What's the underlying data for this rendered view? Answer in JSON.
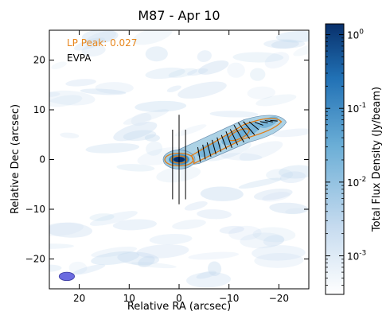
{
  "chart_data": {
    "type": "heatmap",
    "title": "M87 - Apr 10",
    "xlabel": "Relative RA (arcsec)",
    "ylabel": "Relative Dec (arcsec)",
    "xlim": [
      26,
      -26
    ],
    "ylim": [
      -26,
      26
    ],
    "x_ticks": [
      20,
      10,
      0,
      -10,
      -20
    ],
    "y_ticks": [
      20,
      10,
      0,
      -10,
      -20
    ],
    "x_tick_labels": [
      "20",
      "10",
      "0",
      "−10",
      "−20"
    ],
    "y_tick_labels": [
      "20",
      "10",
      "0",
      "−10",
      "−20"
    ],
    "colorbar": {
      "label": "Total Flux Density (Jy/beam)",
      "scale": "log",
      "range": [
        0.0003,
        1.4
      ],
      "colormap_colors": [
        "#ffffff",
        "#c6dbef",
        "#6baed6",
        "#2171b5",
        "#08306b"
      ],
      "ticks": [
        1,
        0.1,
        0.01,
        0.001
      ],
      "tick_bases": [
        "10",
        "10",
        "10",
        "10"
      ],
      "tick_exponents": [
        "0",
        "-1",
        "-2",
        "-3"
      ]
    },
    "annotations": {
      "lp_peak": "LP Peak: 0.027",
      "evpa": "EVPA"
    },
    "colors": {
      "lp_contour": "#e07b14",
      "lp_text": "#e8871e",
      "evpa_vectors": "#000000",
      "beam_fill": "#6b6be0"
    },
    "core": {
      "x": 0,
      "y": 0,
      "peak_jy": 1.0
    },
    "jet_knots": [
      {
        "x": -6,
        "y": 2,
        "flux": 0.05
      },
      {
        "x": -11,
        "y": 4.5,
        "flux": 0.06
      },
      {
        "x": -14,
        "y": 6,
        "flux": 0.05
      },
      {
        "x": -18,
        "y": 7.5,
        "flux": 0.02
      }
    ],
    "beam": {
      "x": 22.5,
      "y": -23.5,
      "major_arcsec": 2.2,
      "minor_arcsec": 1.2,
      "pa_deg": 0
    },
    "evpa_vectors": [
      {
        "x": 0.0,
        "y": 0.0,
        "length": 18.0,
        "angle_deg": 90
      },
      {
        "x": 1.3,
        "y": -1.0,
        "length": 14.0,
        "angle_deg": 90
      },
      {
        "x": -1.3,
        "y": -1.0,
        "length": 14.0,
        "angle_deg": 90
      },
      {
        "x": -4,
        "y": 1.0,
        "length": 3.0,
        "angle_deg": 80
      },
      {
        "x": -5,
        "y": 1.5,
        "length": 3.0,
        "angle_deg": 80
      },
      {
        "x": -6,
        "y": 2.0,
        "length": 3.0,
        "angle_deg": 75
      },
      {
        "x": -7,
        "y": 2.5,
        "length": 3.0,
        "angle_deg": 75
      },
      {
        "x": -8,
        "y": 3.0,
        "length": 3.0,
        "angle_deg": 75
      },
      {
        "x": -9,
        "y": 3.5,
        "length": 3.0,
        "angle_deg": 70
      },
      {
        "x": -10,
        "y": 4.0,
        "length": 3.5,
        "angle_deg": 70
      },
      {
        "x": -11,
        "y": 4.5,
        "length": 3.5,
        "angle_deg": 65
      },
      {
        "x": -12,
        "y": 5.2,
        "length": 4.0,
        "angle_deg": 60
      },
      {
        "x": -13,
        "y": 5.8,
        "length": 4.0,
        "angle_deg": 55
      },
      {
        "x": -14,
        "y": 6.3,
        "length": 3.5,
        "angle_deg": 50
      },
      {
        "x": -15,
        "y": 6.8,
        "length": 2.5,
        "angle_deg": 40
      },
      {
        "x": -16,
        "y": 7.2,
        "length": 1.8,
        "angle_deg": 20
      },
      {
        "x": -17,
        "y": 7.5,
        "length": 1.6,
        "angle_deg": 10
      },
      {
        "x": -18,
        "y": 7.7,
        "length": 1.6,
        "angle_deg": 10
      },
      {
        "x": -19,
        "y": 7.8,
        "length": 1.5,
        "angle_deg": 5
      }
    ]
  }
}
